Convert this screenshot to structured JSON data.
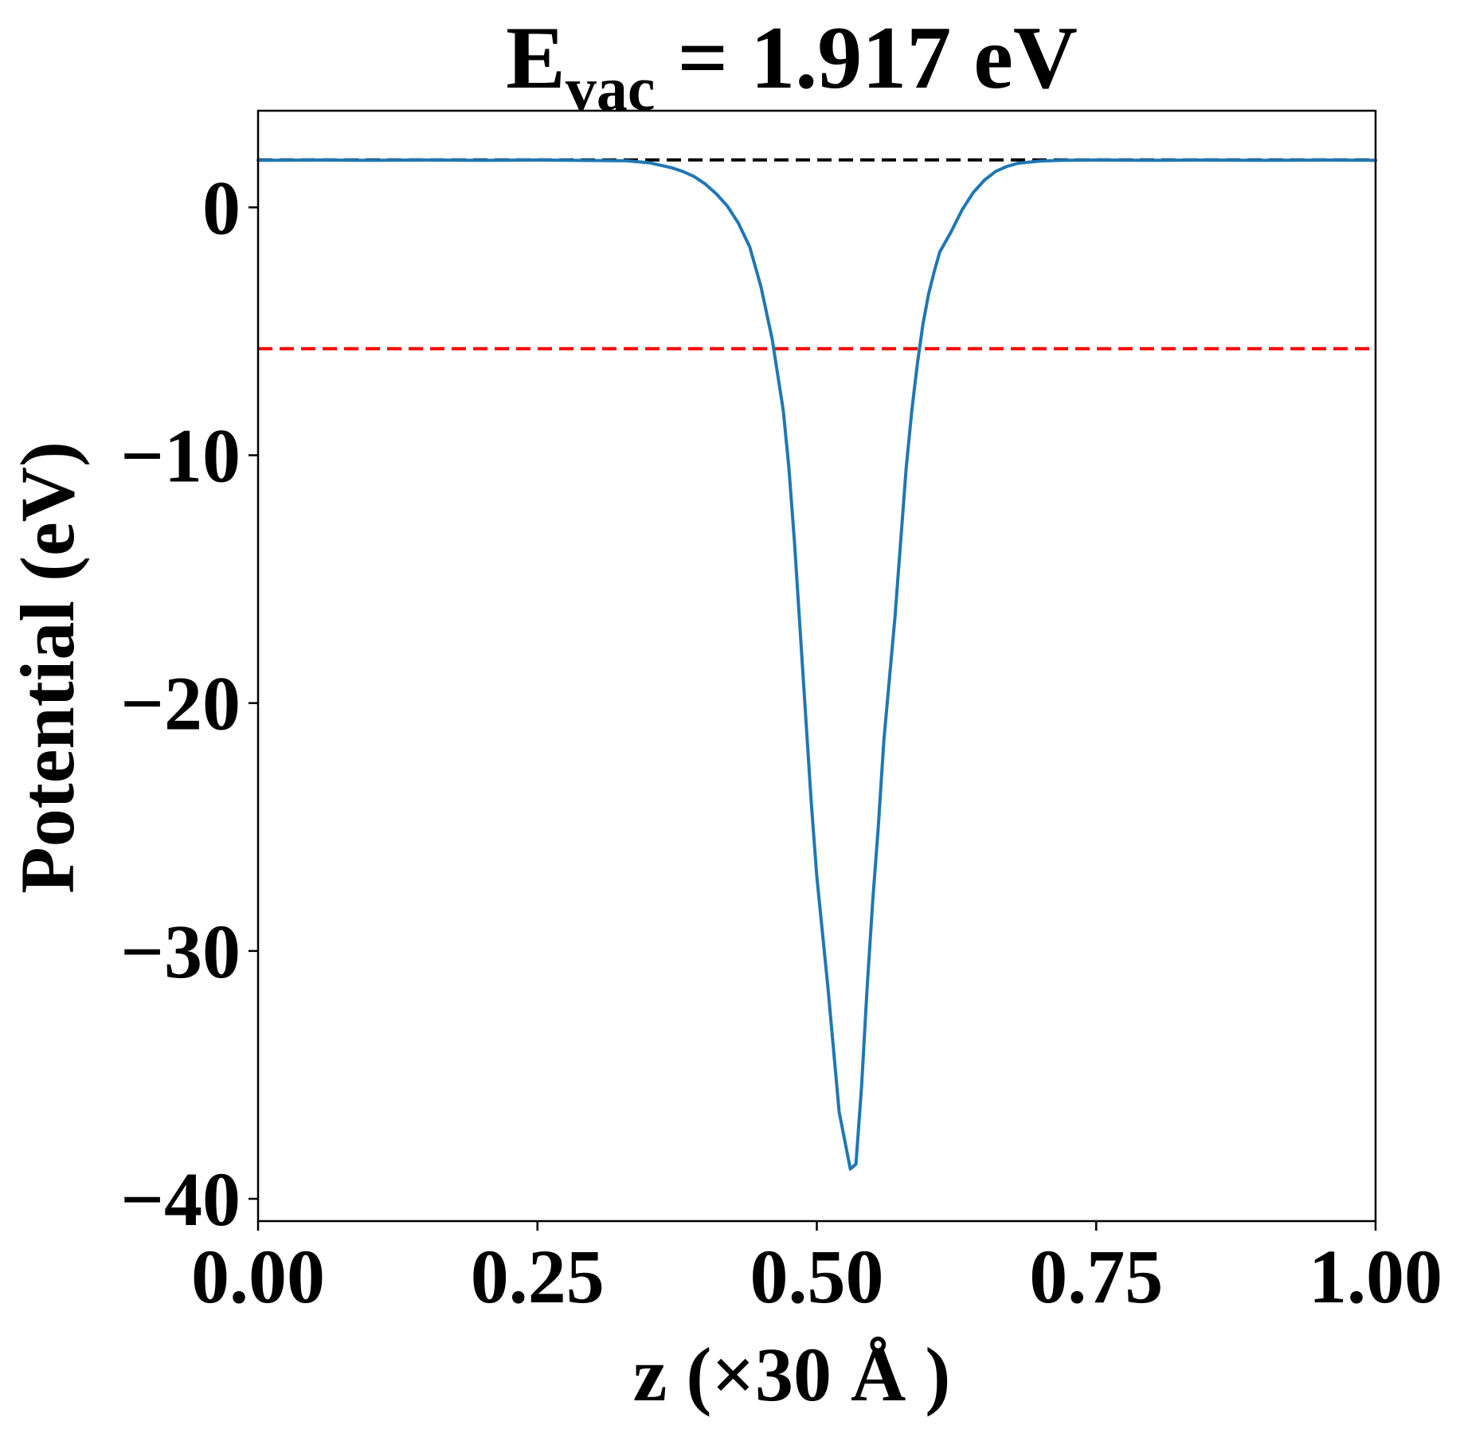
{
  "chart_data": {
    "type": "line",
    "title": {
      "main": "E",
      "sub": "vac",
      "rest": " = 1.917 eV"
    },
    "xlabel": "z (×30 Å )",
    "ylabel": "Potential (eV)",
    "xlim": [
      0.0,
      1.0
    ],
    "ylim": [
      -40.9,
      3.9
    ],
    "xticks": [
      {
        "value": 0.0,
        "label": "0.00"
      },
      {
        "value": 0.25,
        "label": "0.25"
      },
      {
        "value": 0.5,
        "label": "0.50"
      },
      {
        "value": 0.75,
        "label": "0.75"
      },
      {
        "value": 1.0,
        "label": "1.00"
      }
    ],
    "yticks": [
      {
        "value": 0,
        "label": "0"
      },
      {
        "value": -10,
        "label": "−10"
      },
      {
        "value": -20,
        "label": "−20"
      },
      {
        "value": -30,
        "label": "−30"
      },
      {
        "value": -40,
        "label": "−40"
      }
    ],
    "grid": false,
    "series": [
      {
        "color": "#1f77b4",
        "x": [
          0.0,
          0.05,
          0.1,
          0.15,
          0.2,
          0.25,
          0.3,
          0.33,
          0.35,
          0.37,
          0.38,
          0.39,
          0.4,
          0.41,
          0.42,
          0.43,
          0.44,
          0.45,
          0.46,
          0.47,
          0.475,
          0.48,
          0.485,
          0.49,
          0.495,
          0.5,
          0.51,
          0.52,
          0.53,
          0.535,
          0.54,
          0.545,
          0.55,
          0.555,
          0.56,
          0.57,
          0.58,
          0.585,
          0.59,
          0.595,
          0.6,
          0.605,
          0.61,
          0.62,
          0.63,
          0.64,
          0.65,
          0.66,
          0.67,
          0.68,
          0.7,
          0.72,
          0.75,
          0.8,
          0.85,
          0.9,
          0.95,
          1.0
        ],
        "y": [
          1.9,
          1.91,
          1.9,
          1.91,
          1.9,
          1.91,
          1.89,
          1.88,
          1.8,
          1.6,
          1.45,
          1.25,
          0.95,
          0.55,
          0.05,
          -0.65,
          -1.6,
          -3.2,
          -5.3,
          -8.2,
          -10.5,
          -13.5,
          -17.0,
          -20.5,
          -24.0,
          -27.0,
          -31.5,
          -36.5,
          -38.8,
          -38.6,
          -35.5,
          -31.5,
          -28.0,
          -25.0,
          -21.5,
          -16.5,
          -10.5,
          -8.2,
          -6.3,
          -4.7,
          -3.5,
          -2.6,
          -1.8,
          -1.0,
          -0.1,
          0.6,
          1.1,
          1.45,
          1.65,
          1.78,
          1.87,
          1.9,
          1.91,
          1.9,
          1.91,
          1.9,
          1.91,
          1.9
        ]
      }
    ],
    "reference_lines": [
      {
        "y": 1.917,
        "color": "#000000",
        "style": "dashed"
      },
      {
        "y": -5.7,
        "color": "#ff0000",
        "style": "dashed"
      }
    ]
  }
}
